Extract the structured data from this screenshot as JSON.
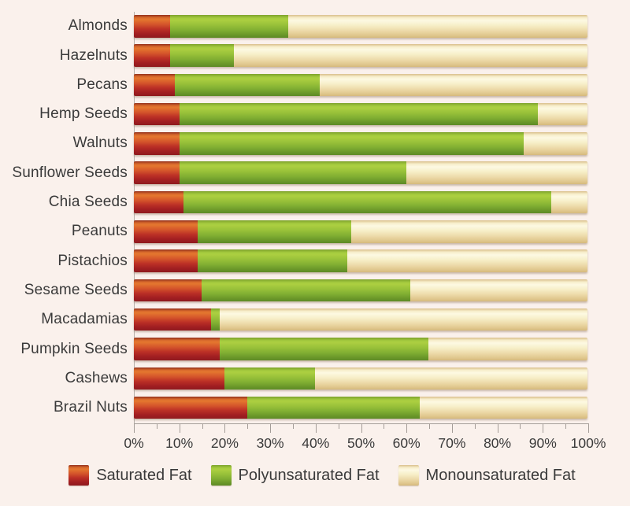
{
  "background_color": "#faf1ec",
  "text_color": "#3a3a3a",
  "chart_data": {
    "type": "bar",
    "orientation": "horizontal",
    "stacked": true,
    "title": "",
    "xlabel": "",
    "ylabel": "",
    "xlim": [
      0,
      100
    ],
    "grid": false,
    "legend_position": "bottom",
    "categories": [
      "Almonds",
      "Hazelnuts",
      "Pecans",
      "Hemp Seeds",
      "Walnuts",
      "Sunflower Seeds",
      "Chia Seeds",
      "Peanuts",
      "Pistachios",
      "Sesame Seeds",
      "Macadamias",
      "Pumpkin Seeds",
      "Cashews",
      "Brazil Nuts"
    ],
    "series": [
      {
        "key": "saturated",
        "name": "Saturated Fat",
        "color_bright": "#e4772f",
        "color_dark": "#8f1a1e",
        "values": [
          8,
          8,
          9,
          10,
          10,
          10,
          11,
          14,
          14,
          15,
          17,
          19,
          20,
          25
        ]
      },
      {
        "key": "polyunsaturated",
        "name": "Polyunsaturated Fat",
        "color_bright": "#accf41",
        "color_dark": "#5d8a26",
        "values": [
          26,
          14,
          32,
          79,
          76,
          50,
          81,
          34,
          33,
          46,
          2,
          46,
          20,
          38
        ]
      },
      {
        "key": "monounsaturated",
        "name": "Monounsaturated Fat",
        "color_bright": "#fdf9e2",
        "color_dark": "#d5b97c",
        "values": [
          66,
          78,
          59,
          11,
          14,
          40,
          8,
          52,
          53,
          39,
          81,
          35,
          60,
          37
        ]
      }
    ],
    "x_ticks": [
      "0%",
      "10%",
      "20%",
      "30%",
      "40%",
      "50%",
      "60%",
      "70%",
      "80%",
      "90%",
      "100%"
    ],
    "x_tick_major_step": 10,
    "x_tick_minor_step": 5,
    "unit": "%"
  },
  "axis_colors": {
    "line": "#a49d98",
    "y_line": "#b7b0aa"
  }
}
